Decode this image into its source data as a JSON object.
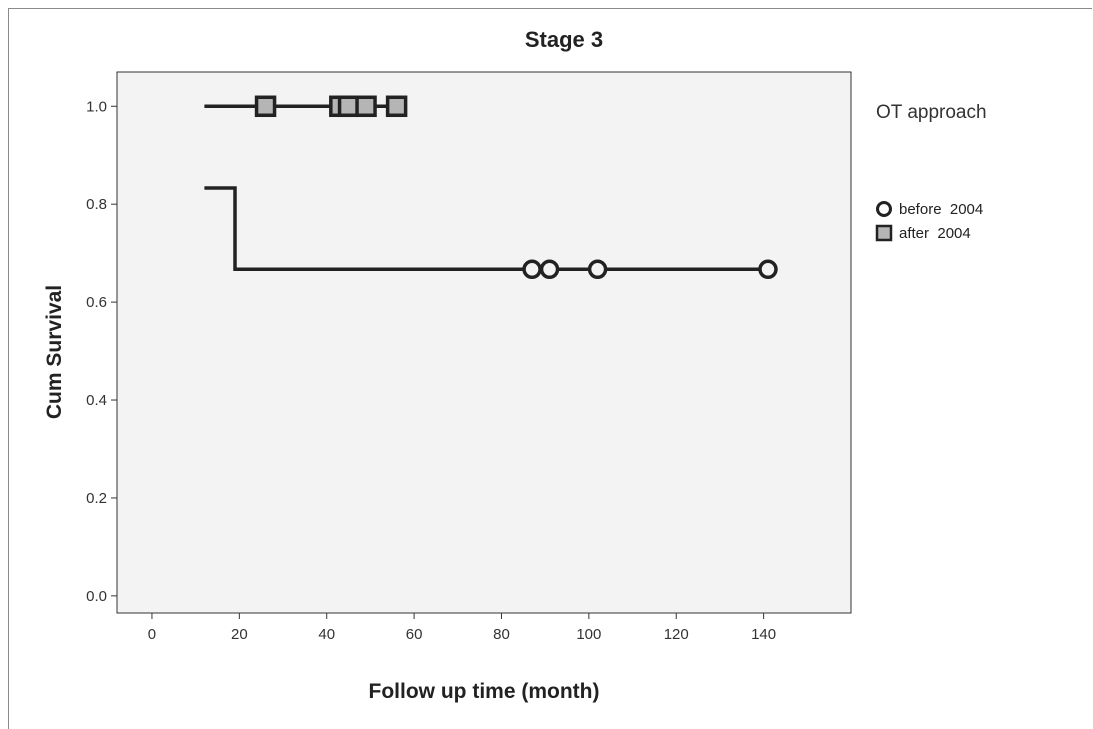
{
  "chart_data": {
    "type": "line",
    "subtype": "kaplan-meier",
    "title": "Stage 3",
    "xlabel": "Follow up time (month)",
    "ylabel": "Cum Survival",
    "xlim": [
      -8,
      160
    ],
    "ylim": [
      -0.035,
      1.07
    ],
    "x_ticks": [
      0,
      20,
      40,
      60,
      80,
      100,
      120,
      140
    ],
    "x_tick_labels": [
      "0",
      "20",
      "40",
      "60",
      "80",
      "100",
      "120",
      "140"
    ],
    "y_ticks": [
      0.0,
      0.2,
      0.4,
      0.6,
      0.8,
      1.0
    ],
    "y_tick_labels": [
      "0.0",
      "0.2",
      "0.4",
      "0.6",
      "0.8",
      "1.0"
    ],
    "grid": false,
    "legend": {
      "title": "OT approach",
      "position": "right"
    },
    "series": [
      {
        "name": "before  2004",
        "marker": "circle",
        "color": "#222222",
        "steps": [
          [
            12,
            0.833
          ],
          [
            19,
            0.833
          ],
          [
            19,
            0.667
          ],
          [
            141,
            0.667
          ]
        ],
        "censored": [
          [
            87,
            0.667
          ],
          [
            91,
            0.667
          ],
          [
            102,
            0.667
          ],
          [
            141,
            0.667
          ]
        ]
      },
      {
        "name": "after  2004",
        "marker": "square",
        "color": "#222222",
        "fill": "#b5b5b5",
        "steps": [
          [
            12,
            1.0
          ],
          [
            56,
            1.0
          ]
        ],
        "censored": [
          [
            26,
            1.0
          ],
          [
            43,
            1.0
          ],
          [
            45,
            1.0
          ],
          [
            49,
            1.0
          ],
          [
            56,
            1.0
          ]
        ]
      }
    ]
  },
  "colors": {
    "plot_bg": "#f3f3f3",
    "line": "#222222",
    "square_fill": "#b5b5b5"
  }
}
